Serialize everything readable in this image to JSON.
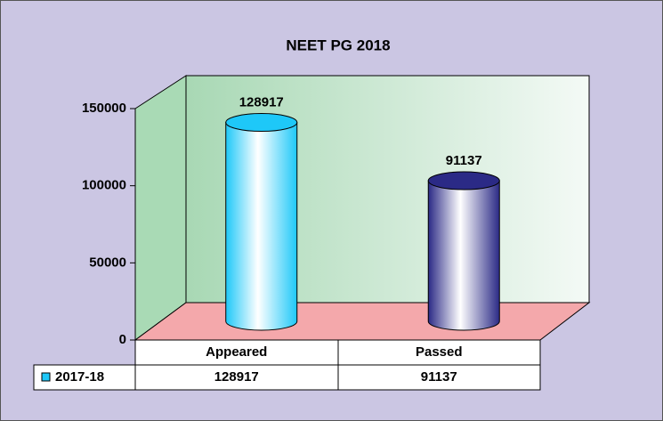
{
  "chart_data": {
    "type": "bar",
    "title": "NEET PG 2018",
    "categories": [
      "Appeared",
      "Passed"
    ],
    "series": [
      {
        "name": "2017-18",
        "values": [
          128917,
          91137
        ],
        "color": "#1ec8f8",
        "point_colors": [
          "#1ec8f8",
          "#2b2a86"
        ]
      }
    ],
    "ylim": [
      0,
      150000
    ],
    "yticks": [
      0,
      50000,
      100000,
      150000
    ],
    "grid": false,
    "data_table": true
  }
}
